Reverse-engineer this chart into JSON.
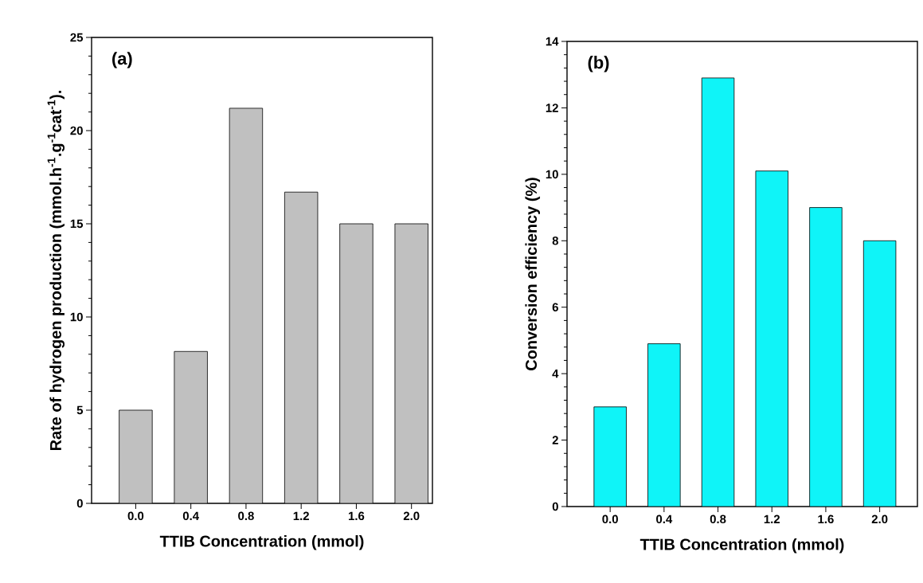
{
  "chart_data": [
    {
      "type": "bar",
      "annotations": [
        "(a)"
      ],
      "xlabel": "TTIB Concentration (mmol)",
      "ylabel": "Rate of hydrogen production (mmol.h$^{-1}$.g$^{-1}$cat$^{-1}$).",
      "categories": [
        "0.0",
        "0.4",
        "0.8",
        "1.2",
        "1.6",
        "2.0"
      ],
      "values": [
        5.0,
        8.15,
        21.2,
        16.7,
        15.0,
        15.0
      ],
      "color": "#c0c0c0",
      "ylim": [
        0,
        25
      ],
      "yticks": [
        0,
        5,
        10,
        15,
        20,
        25
      ]
    },
    {
      "type": "bar",
      "annotations": [
        "(b)"
      ],
      "xlabel": "TTIB Concentration (mmol)",
      "ylabel": "Conversion efficiency (%)",
      "categories": [
        "0.0",
        "0.4",
        "0.8",
        "1.2",
        "1.6",
        "2.0"
      ],
      "values": [
        3.0,
        4.9,
        12.9,
        10.1,
        9.0,
        8.0
      ],
      "color": "#0ff4f8",
      "ylim": [
        0,
        14
      ],
      "yticks": [
        0,
        2,
        4,
        6,
        8,
        10,
        12,
        14
      ]
    }
  ]
}
